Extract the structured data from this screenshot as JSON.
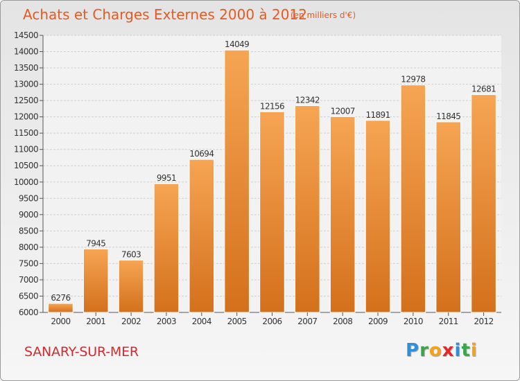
{
  "header": {
    "title": "Achats et Charges Externes 2000 à 2012",
    "subtitle": "(en milliers d'€)"
  },
  "footer": {
    "town": "SANARY-SUR-MER",
    "logo_text": "Proxiti",
    "logo_letters": [
      {
        "ch": "P",
        "color": "#2f8fd8"
      },
      {
        "ch": "r",
        "color": "#3aa64a"
      },
      {
        "ch": "o",
        "color": "#f2a21b"
      },
      {
        "ch": "x",
        "color": "#e2282b"
      },
      {
        "ch": "i",
        "color": "#2f8fd8"
      },
      {
        "ch": "t",
        "color": "#3aa64a"
      },
      {
        "ch": "i",
        "color": "#f2a21b"
      }
    ]
  },
  "colors": {
    "bar_light": "#f6a553",
    "bar_dark": "#d4701c",
    "title": "#e8591f",
    "town": "#d6282e"
  },
  "chart_data": {
    "type": "bar",
    "categories": [
      "2000",
      "2001",
      "2002",
      "2003",
      "2004",
      "2005",
      "2006",
      "2007",
      "2008",
      "2009",
      "2010",
      "2011",
      "2012"
    ],
    "values": [
      6276,
      7945,
      7603,
      9951,
      10694,
      14049,
      12156,
      12342,
      12007,
      11891,
      12978,
      11845,
      12681
    ],
    "ylim": [
      6000,
      14500
    ],
    "ytick_step": 500,
    "grid": true
  }
}
